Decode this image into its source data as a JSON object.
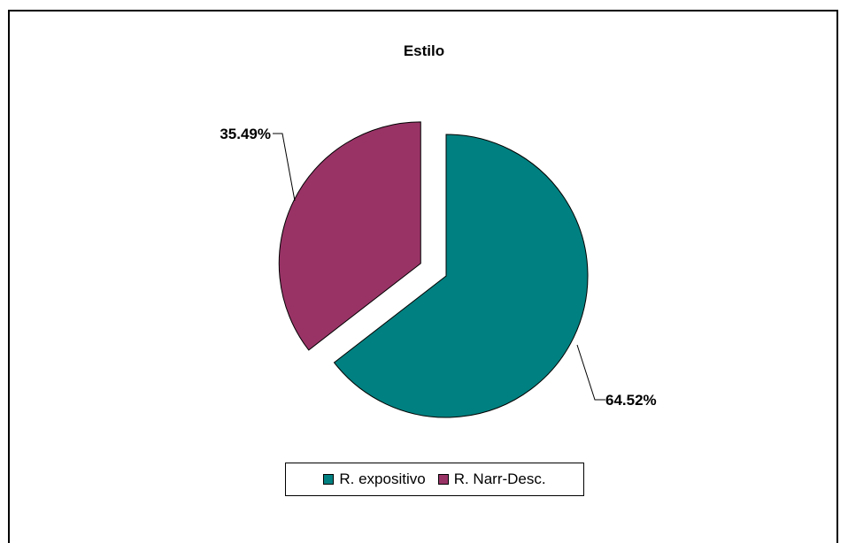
{
  "chart_data": {
    "type": "pie",
    "title": "Estilo",
    "slices": [
      {
        "label": "R. expositivo",
        "value": 64.52,
        "data_label": "64.52%",
        "color": "#008080",
        "exploded": false
      },
      {
        "label": "R. Narr-Desc.",
        "value": 35.49,
        "data_label": "35.49%",
        "color": "#993366",
        "exploded": true
      }
    ],
    "legend_position": "bottom",
    "data_labels": "outside with leader lines"
  }
}
